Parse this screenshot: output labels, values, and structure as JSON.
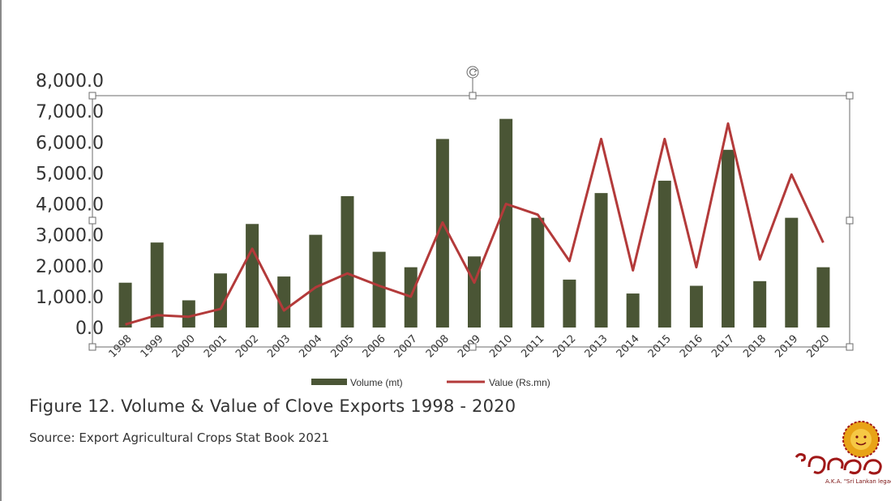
{
  "chart_data": {
    "type": "bar+line",
    "title": "Figure 12.  Volume & Value of Clove Exports 1998 - 2020",
    "source": "Source:  Export Agricultural Crops Stat Book 2021",
    "categories": [
      "1998",
      "1999",
      "2000",
      "2001",
      "2002",
      "2003",
      "2004",
      "2005",
      "2006",
      "2007",
      "2008",
      "2009",
      "2010",
      "2011",
      "2012",
      "2013",
      "2014",
      "2015",
      "2016",
      "2017",
      "2018",
      "2019",
      "2020"
    ],
    "series": [
      {
        "name": "Volume (mt)",
        "type": "bar",
        "color": "#4a5535",
        "values": [
          1450,
          2750,
          880,
          1750,
          3350,
          1650,
          3000,
          4250,
          2450,
          1950,
          6100,
          2300,
          6750,
          3550,
          1550,
          4350,
          1100,
          4750,
          1350,
          5750,
          1500,
          3550,
          1950
        ]
      },
      {
        "name": "Value (Rs.mn)",
        "type": "line",
        "color": "#b33a3a",
        "values": [
          100,
          400,
          350,
          600,
          2550,
          550,
          1300,
          1750,
          1350,
          1000,
          3400,
          1450,
          4000,
          3650,
          2150,
          6100,
          1850,
          6100,
          1950,
          6600,
          2200,
          4950,
          2750
        ]
      }
    ],
    "y_ticks": [
      "0.0",
      "1,000.0",
      "2,000.0",
      "3,000.0",
      "4,000.0",
      "5,000.0",
      "6,000.0",
      "7,000.0",
      "8,000.0"
    ],
    "ylim": [
      0,
      8000
    ],
    "legend": "bottom-center"
  },
  "logo": {
    "text": "A.K.A. \"Sri Lankan legacy\"",
    "colors": {
      "sun": "#e8a317",
      "script": "#a01818"
    }
  }
}
